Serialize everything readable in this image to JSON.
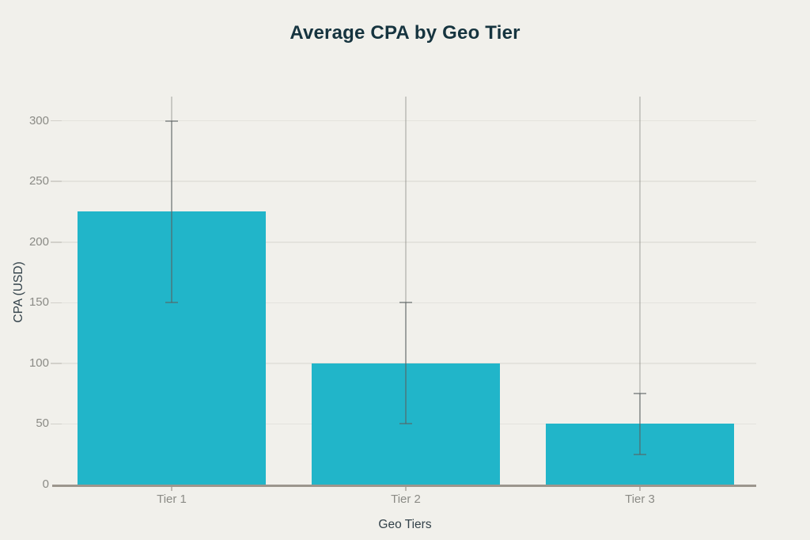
{
  "chart_data": {
    "type": "bar",
    "title": "Average CPA by Geo Tier",
    "xlabel": "Geo Tiers",
    "ylabel": "CPA (USD)",
    "categories": [
      "Tier 1",
      "Tier 2",
      "Tier 3"
    ],
    "values": [
      225,
      100,
      50
    ],
    "error_low": [
      150,
      50,
      25
    ],
    "error_high": [
      300,
      150,
      75
    ],
    "yticks": [
      0,
      50,
      100,
      150,
      200,
      250,
      300
    ],
    "ytick_labels": [
      "0",
      "50",
      "100",
      "150",
      "200",
      "250",
      "300"
    ],
    "ylim": [
      0,
      320
    ],
    "grid": true,
    "legend": false,
    "colors": {
      "background": "#f1f0eb",
      "bar": "#21b5c9",
      "title": "#16343f",
      "axis_title": "#33424a",
      "tick_label": "#8b8b86",
      "gridline": "#e4e3dd",
      "y_tick": "#d2d0ca",
      "axis_line": "#9c968d",
      "x_tick": "#bdb9b2",
      "error_bar": "rgba(90,96,97,0.55)",
      "whisker_faint": "rgba(140,140,135,0.4)"
    }
  }
}
